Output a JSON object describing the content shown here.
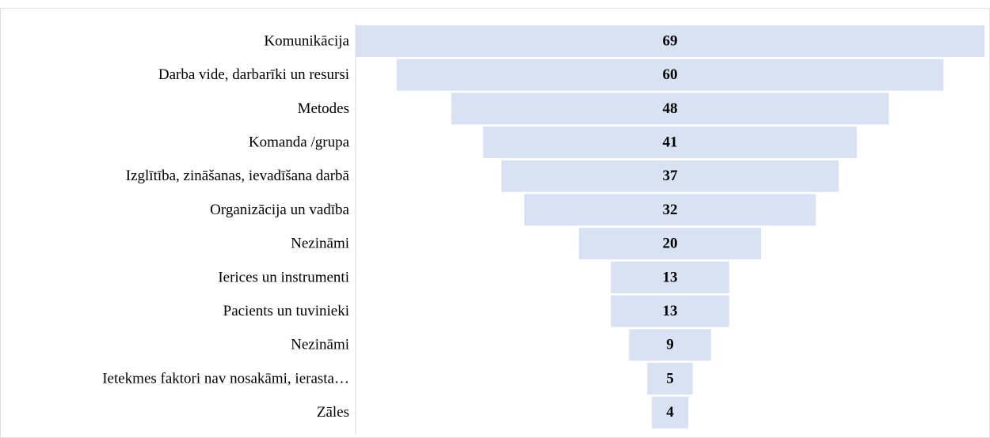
{
  "chart_data": {
    "type": "funnel",
    "categories": [
      "Komunikācija",
      "Darba vide, darbarīki un resursi",
      "Metodes",
      "Komanda /grupa",
      "Izglītība, zināšanas, ievadīšana darbā",
      "Organizācija un vadība",
      "Nezināmi",
      "Ierices un instrumenti",
      "Pacients un tuvinieki",
      "Nezināmi",
      "Ietekmes faktori nav nosakāmi, ierasta…",
      "Zāles"
    ],
    "values": [
      69,
      60,
      48,
      41,
      37,
      32,
      20,
      13,
      13,
      9,
      5,
      4
    ],
    "color": "#d9e2f3"
  }
}
